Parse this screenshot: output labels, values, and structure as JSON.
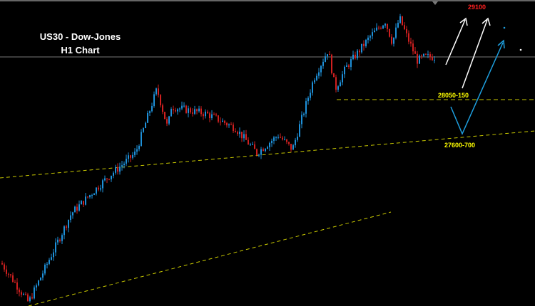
{
  "chart_data": {
    "type": "candlestick",
    "title": "US30 - Dow-Jones",
    "subtitle": "H1 Chart",
    "approx_close_path": [
      26260,
      25820,
      26820,
      27220,
      27500,
      28220,
      27780,
      28020,
      27940,
      27780,
      27500,
      27700,
      27540,
      28020,
      28340,
      28660,
      28220,
      28460,
      28820,
      28980,
      28740,
      29020,
      28820,
      28540,
      28580
    ],
    "levels": [
      {
        "label": "29100",
        "value": 29100,
        "color": "#ff2020"
      },
      {
        "label": "28050-150",
        "value": 28100,
        "color": "#ffff00"
      },
      {
        "label": "27600-700",
        "value": 27650,
        "color": "#ffff00"
      }
    ],
    "trendlines": "yellow dashed",
    "up_color": "#1e90d8",
    "down_color": "#d02020",
    "grid": false
  }
}
